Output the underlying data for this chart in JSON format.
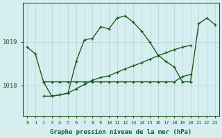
{
  "background_color": "#d6eef0",
  "grid_color": "#b8d8dc",
  "line_color": "#1a5c1a",
  "title": "Graphe pression niveau de la mer (hPa)",
  "yticks": [
    1018,
    1019
  ],
  "xticks": [
    0,
    1,
    2,
    3,
    4,
    5,
    6,
    7,
    8,
    9,
    10,
    11,
    12,
    13,
    14,
    15,
    16,
    17,
    18,
    19,
    20,
    21,
    22,
    23
  ],
  "ylim": [
    1017.3,
    1019.9
  ],
  "xlim": [
    -0.5,
    23.5
  ],
  "series_flat_x": [
    2,
    3,
    4,
    5,
    6,
    7,
    8,
    9,
    10,
    11,
    12,
    13,
    14,
    15,
    16,
    17,
    18,
    19,
    20
  ],
  "series_flat_y": [
    1018.08,
    1018.08,
    1018.08,
    1018.08,
    1018.08,
    1018.08,
    1018.08,
    1018.08,
    1018.08,
    1018.08,
    1018.08,
    1018.08,
    1018.08,
    1018.08,
    1018.08,
    1018.08,
    1018.08,
    1018.2,
    1018.25
  ],
  "series_diag_x": [
    2,
    3,
    4,
    5,
    6,
    7,
    8,
    9,
    10,
    11,
    12,
    13,
    14,
    15,
    16,
    17,
    18,
    19,
    20
  ],
  "series_diag_y": [
    1017.75,
    1017.75,
    1017.78,
    1017.82,
    1017.92,
    1018.02,
    1018.12,
    1018.18,
    1018.22,
    1018.3,
    1018.38,
    1018.45,
    1018.52,
    1018.6,
    1018.68,
    1018.75,
    1018.82,
    1018.88,
    1018.92
  ],
  "series_curve_x": [
    0,
    1,
    2,
    3,
    4,
    5,
    6,
    7,
    8,
    9,
    10,
    11,
    12,
    13,
    14,
    15,
    16,
    17,
    18,
    19,
    20,
    21,
    22,
    23
  ],
  "series_curve_y": [
    1018.88,
    1018.72,
    1018.08,
    1017.75,
    1017.78,
    1017.82,
    1018.55,
    1019.05,
    1019.08,
    1019.35,
    1019.3,
    1019.55,
    1019.6,
    1019.45,
    1019.25,
    1019.0,
    1018.7,
    1018.55,
    1018.42,
    1018.08,
    1018.08,
    1019.42,
    1019.55,
    1019.4
  ]
}
